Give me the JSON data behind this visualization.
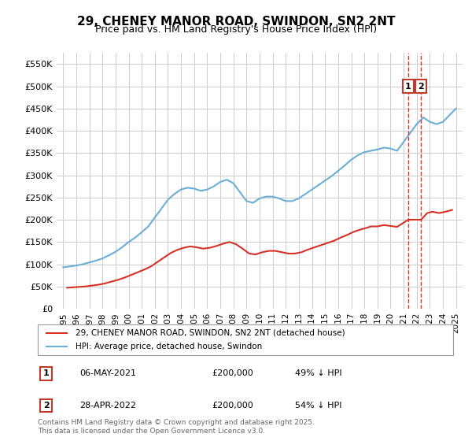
{
  "title": "29, CHENEY MANOR ROAD, SWINDON, SN2 2NT",
  "subtitle": "Price paid vs. HM Land Registry's House Price Index (HPI)",
  "xlabel": "",
  "ylabel": "",
  "background_color": "#ffffff",
  "grid_color": "#cccccc",
  "hpi_color": "#6baed6",
  "price_color": "#d73027",
  "vline_color": "#d73027",
  "annotation_box_color": "#c0392b",
  "ylim": [
    0,
    575000
  ],
  "yticks": [
    0,
    50000,
    100000,
    150000,
    200000,
    250000,
    300000,
    350000,
    400000,
    450000,
    500000,
    550000
  ],
  "ytick_labels": [
    "£0",
    "£50K",
    "£100K",
    "£150K",
    "£200K",
    "£250K",
    "£300K",
    "£350K",
    "£400K",
    "£450K",
    "£500K",
    "£550K"
  ],
  "legend_entries": [
    "29, CHENEY MANOR ROAD, SWINDON, SN2 2NT (detached house)",
    "HPI: Average price, detached house, Swindon"
  ],
  "transactions": [
    {
      "label": "1",
      "date": "06-MAY-2021",
      "price": 200000,
      "pct": "49% ↓ HPI",
      "x_year": 2021.35
    },
    {
      "label": "2",
      "date": "28-APR-2022",
      "price": 200000,
      "pct": "54% ↓ HPI",
      "x_year": 2022.33
    }
  ],
  "copyright": "Contains HM Land Registry data © Crown copyright and database right 2025.\nThis data is licensed under the Open Government Licence v3.0.",
  "hpi_x": [
    1995,
    1995.5,
    1996,
    1996.5,
    1997,
    1997.5,
    1998,
    1998.5,
    1999,
    1999.5,
    2000,
    2000.5,
    2001,
    2001.5,
    2002,
    2002.5,
    2003,
    2003.5,
    2004,
    2004.5,
    2005,
    2005.5,
    2006,
    2006.5,
    2007,
    2007.5,
    2008,
    2008.5,
    2009,
    2009.5,
    2010,
    2010.5,
    2011,
    2011.5,
    2012,
    2012.5,
    2013,
    2013.5,
    2014,
    2014.5,
    2015,
    2015.5,
    2016,
    2016.5,
    2017,
    2017.5,
    2018,
    2018.5,
    2019,
    2019.5,
    2020,
    2020.5,
    2021,
    2021.5,
    2022,
    2022.5,
    2023,
    2023.5,
    2024,
    2024.5,
    2025
  ],
  "hpi_y": [
    93000,
    95000,
    97000,
    100000,
    104000,
    108000,
    113000,
    120000,
    128000,
    138000,
    150000,
    160000,
    172000,
    185000,
    205000,
    225000,
    245000,
    258000,
    268000,
    272000,
    270000,
    265000,
    268000,
    275000,
    285000,
    290000,
    282000,
    262000,
    242000,
    238000,
    248000,
    252000,
    252000,
    248000,
    242000,
    242000,
    248000,
    258000,
    268000,
    278000,
    288000,
    298000,
    310000,
    322000,
    335000,
    345000,
    352000,
    355000,
    358000,
    362000,
    360000,
    355000,
    375000,
    395000,
    415000,
    430000,
    420000,
    415000,
    420000,
    435000,
    450000
  ],
  "price_x": [
    1995.3,
    1995.7,
    1996.2,
    1996.7,
    1997.2,
    1997.7,
    1998.2,
    1998.7,
    1999.2,
    1999.7,
    2000.2,
    2000.7,
    2001.2,
    2001.7,
    2002.2,
    2002.7,
    2003.2,
    2003.7,
    2004.2,
    2004.7,
    2005.2,
    2005.7,
    2006.2,
    2006.7,
    2007.2,
    2007.7,
    2008.2,
    2008.7,
    2009.2,
    2009.7,
    2010.2,
    2010.7,
    2011.2,
    2011.7,
    2012.2,
    2012.7,
    2013.2,
    2013.7,
    2014.2,
    2014.7,
    2015.2,
    2015.7,
    2016.2,
    2016.7,
    2017.2,
    2017.7,
    2018.2,
    2018.5,
    2019.0,
    2019.5,
    2020.0,
    2020.5,
    2021.35,
    2022.33,
    2022.8,
    2023.2,
    2023.7,
    2024.2,
    2024.7
  ],
  "price_y": [
    47000,
    48000,
    49000,
    50000,
    52000,
    54000,
    57000,
    61000,
    65000,
    70000,
    76000,
    82000,
    88000,
    95000,
    105000,
    115000,
    125000,
    132000,
    137000,
    140000,
    138000,
    135000,
    137000,
    141000,
    146000,
    150000,
    145000,
    135000,
    124000,
    122000,
    127000,
    130000,
    130000,
    127000,
    124000,
    124000,
    127000,
    133000,
    138000,
    143000,
    148000,
    153000,
    160000,
    166000,
    173000,
    178000,
    182000,
    185000,
    185000,
    188000,
    186000,
    184000,
    200000,
    200000,
    215000,
    218000,
    215000,
    218000,
    222000
  ],
  "xlim": [
    1994.5,
    2025.5
  ],
  "xticks": [
    1995,
    1996,
    1997,
    1998,
    1999,
    2000,
    2001,
    2002,
    2003,
    2004,
    2005,
    2006,
    2007,
    2008,
    2009,
    2010,
    2011,
    2012,
    2013,
    2014,
    2015,
    2016,
    2017,
    2018,
    2019,
    2020,
    2021,
    2022,
    2023,
    2024,
    2025
  ]
}
